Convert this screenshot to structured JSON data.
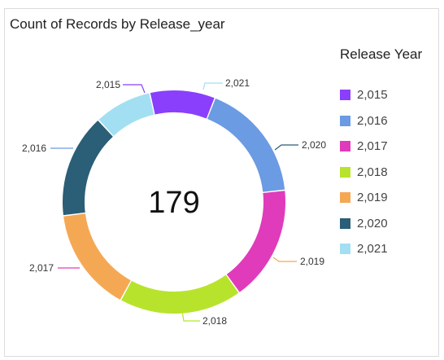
{
  "title": "Count of Records by Release_year",
  "total_label": "179",
  "legend": {
    "title": "Release Year",
    "items": [
      {
        "label": "2,015",
        "color": "#8a3ffc"
      },
      {
        "label": "2,016",
        "color": "#6a9be3"
      },
      {
        "label": "2,017",
        "color": "#e03bbb"
      },
      {
        "label": "2,018",
        "color": "#b8e32c"
      },
      {
        "label": "2,019",
        "color": "#f5a853"
      },
      {
        "label": "2,020",
        "color": "#2b5e77"
      },
      {
        "label": "2,021",
        "color": "#a3dff2"
      }
    ]
  },
  "chart_data": {
    "type": "pie",
    "donut": true,
    "title": "Count of Records by Release_year",
    "total": 179,
    "legend_title": "Release Year",
    "legend_position": "right",
    "categories": [
      "2,015",
      "2,016",
      "2,017",
      "2,018",
      "2,019",
      "2,020",
      "2,021"
    ],
    "values": [
      17,
      31,
      30,
      32,
      27,
      27,
      15
    ]
  }
}
